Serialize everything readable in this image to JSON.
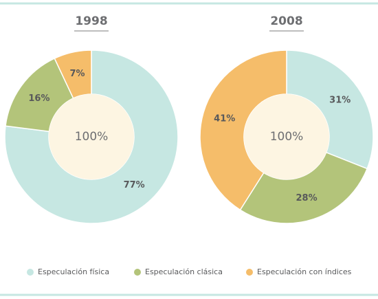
{
  "legend": {
    "labels": [
      "Especulación física",
      "Especulación clásica",
      "Especulación con índices"
    ],
    "colors": [
      "#c6e7e2",
      "#b3c47a",
      "#f5bd6a"
    ]
  },
  "chart_data": [
    {
      "type": "pie",
      "title": "1998",
      "values": [
        77,
        16,
        7
      ],
      "value_labels": [
        "77%",
        "16%",
        "7%"
      ],
      "center_label": "100%"
    },
    {
      "type": "pie",
      "title": "2008",
      "values": [
        31,
        28,
        41
      ],
      "value_labels": [
        "31%",
        "28%",
        "41%"
      ],
      "center_label": "100%"
    }
  ]
}
